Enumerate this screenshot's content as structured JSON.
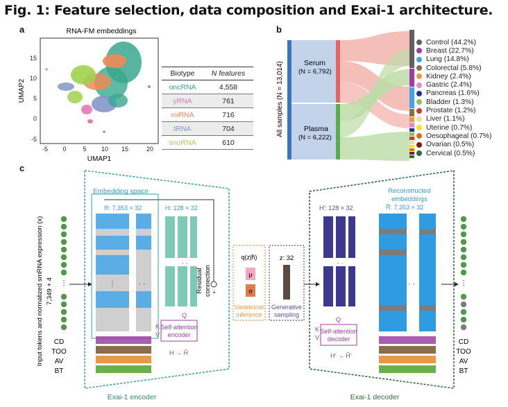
{
  "figure": {
    "title": "Fig. 1: Feature selection, data composition and Exai-1 architecture."
  },
  "panel_a": {
    "letter": "a",
    "plot_title": "RNA-FM embeddings",
    "xlabel": "UMAP1",
    "ylabel": "UMAP2",
    "xticks": [
      "-5",
      "0",
      "5",
      "10",
      "15",
      "20"
    ],
    "yticks": [
      "15",
      "10",
      "5",
      "0",
      "-5"
    ],
    "table": {
      "headers": [
        "Biotype",
        "N features"
      ],
      "rows": [
        {
          "biotype": "oncRNA",
          "n": "4,558",
          "color": "#3aa78f"
        },
        {
          "biotype": "yRNA",
          "n": "761",
          "color": "#e378b8"
        },
        {
          "biotype": "miRNA",
          "n": "716",
          "color": "#f08a55"
        },
        {
          "biotype": "tRNA",
          "n": "704",
          "color": "#8596c9"
        },
        {
          "biotype": "snoRNA",
          "n": "610",
          "color": "#9ed24c"
        }
      ]
    }
  },
  "panel_b": {
    "letter": "b",
    "all_samples_label": "All samples (N = 13,014)",
    "serum": {
      "name": "Serum",
      "n": "(N = 6,792)"
    },
    "plasma": {
      "name": "Plasma",
      "n": "(N = 6,222)"
    },
    "legend": [
      {
        "label": "Control (44.2%)",
        "color": "#606060"
      },
      {
        "label": "Breast (22.7%)",
        "color": "#9b3fa1"
      },
      {
        "label": "Lung (14.8%)",
        "color": "#4a9fe0"
      },
      {
        "label": "Colorectal (5.8%)",
        "color": "#8b6d4a"
      },
      {
        "label": "Kidney (2.4%)",
        "color": "#e69a45"
      },
      {
        "label": "Gastric (2.4%)",
        "color": "#e58cc6"
      },
      {
        "label": "Pancreas (1.6%)",
        "color": "#2a2f8a"
      },
      {
        "label": "Bladder (1.3%)",
        "color": "#8fc25a"
      },
      {
        "label": "Prostate (1.2%)",
        "color": "#d8362d"
      },
      {
        "label": "Liver (1.1%)",
        "color": "#e9dfa3"
      },
      {
        "label": "Uterine (0.7%)",
        "color": "#f5e024"
      },
      {
        "label": "Oesophageal (0.7%)",
        "color": "#d1721f"
      },
      {
        "label": "Ovarian (0.5%)",
        "color": "#7b1a1a"
      },
      {
        "label": "Cervical (0.5%)",
        "color": "#2f6b3a"
      }
    ]
  },
  "panel_c": {
    "letter": "c",
    "input_label": "Input tokens and normalized smRNA expression (x)",
    "input_dim": "7,349 + 4",
    "row_labels": [
      "CD",
      "TOO",
      "AV",
      "BT"
    ],
    "embedding_space": "Embedding space",
    "r_dim": "R: 7,353 × 32",
    "h_dim": "H: 128 × 32",
    "residual": "Residual",
    "connection": "connection",
    "q": "Q",
    "k": "K",
    "v": "V",
    "self_attention": "Self-attention",
    "encoder_word": "encoder",
    "decoder_word": "decoder",
    "h_map": "H → H̃",
    "q_dist": "q(z|h̃)",
    "mu": "μ",
    "sigma": "σ",
    "variational": "Variational",
    "inference": "inference",
    "z_dim": "z: 32",
    "generative": "Generative",
    "sampling": "sampling",
    "hprime_dim": "H′: 128 × 32",
    "reconstructed": "Reconstructed",
    "embeddings": "embeddings",
    "rtilde_dim": "R̃: 7,353 × 32",
    "hprime_map": "H′ → H̃′",
    "encoder_label": "Exai-1 encoder",
    "decoder_label": "Exai-1 decoder"
  }
}
